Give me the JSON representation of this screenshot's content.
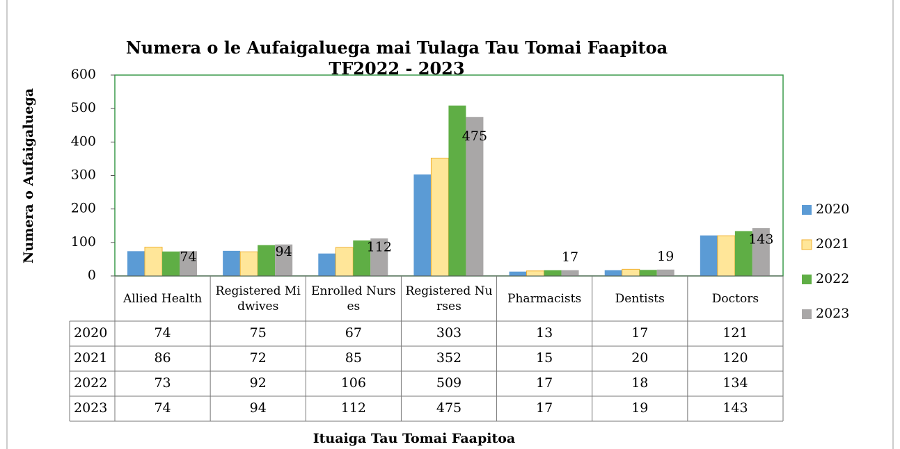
{
  "chart_data": {
    "type": "bar",
    "title": "Numera o le Aufaigaluega mai Tulaga Tau Tomai Faapitoa TF2022 - 2023",
    "y_label": "Numera o Aufaigaluega",
    "x_label": "Ituaiga Tau Tomai Faapitoa",
    "categories": [
      "Allied Health",
      "Registered Midwives",
      "Enrolled Nurses",
      "Registered Nurses",
      "Pharmacists",
      "Dentists",
      "Doctors"
    ],
    "series": [
      {
        "name": "2020",
        "color": "#5b9bd5",
        "values": [
          74,
          75,
          67,
          303,
          13,
          17,
          121
        ]
      },
      {
        "name": "2021",
        "color": "#ffe699",
        "values": [
          86,
          72,
          85,
          352,
          15,
          20,
          120
        ]
      },
      {
        "name": "2022",
        "color": "#5fae45",
        "values": [
          73,
          92,
          106,
          509,
          17,
          18,
          134
        ]
      },
      {
        "name": "2023",
        "color": "#a9a7a7",
        "values": [
          74,
          94,
          112,
          475,
          17,
          19,
          143
        ]
      }
    ],
    "labeled_series": 3,
    "ylim": [
      0,
      600
    ],
    "yticks": [
      0,
      100,
      200,
      300,
      400,
      500,
      600
    ],
    "legend": "right",
    "data_table": true
  }
}
